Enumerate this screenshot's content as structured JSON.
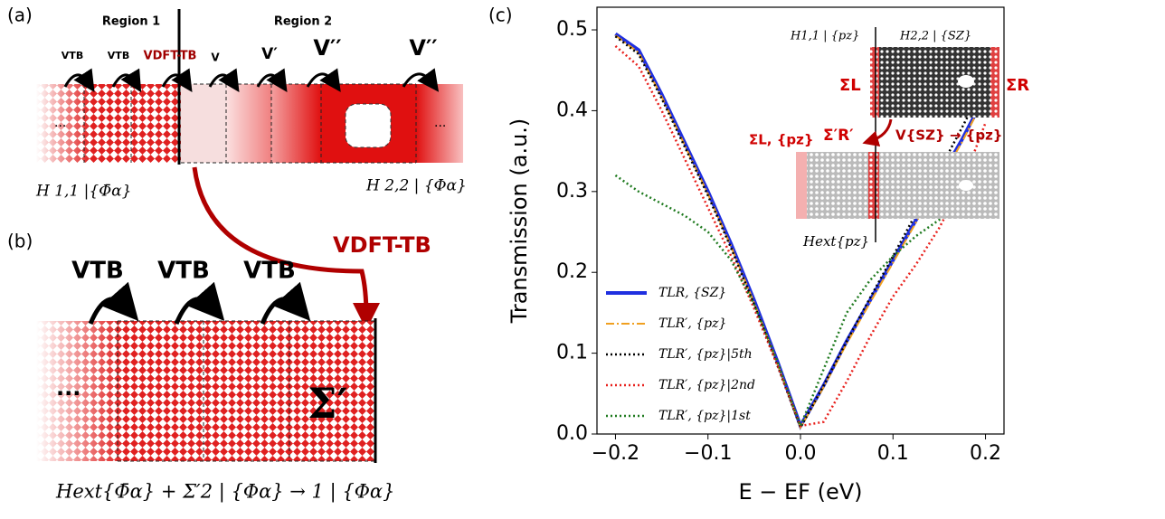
{
  "chart_data": {
    "type": "line",
    "panel_label": "(c)",
    "xlabel": "E − EF (eV)",
    "ylabel": "Transmission (a.u.)",
    "x": [
      -0.2,
      -0.175,
      -0.15,
      -0.125,
      -0.1,
      -0.075,
      -0.05,
      -0.025,
      0,
      0.025,
      0.05,
      0.075,
      0.1,
      0.125,
      0.15,
      0.175,
      0.2
    ],
    "xlim": [
      -0.22,
      0.22
    ],
    "ylim": [
      0,
      0.528
    ],
    "xticks": [
      {
        "value": -0.2,
        "label": "−0.2"
      },
      {
        "value": -0.1,
        "label": "−0.1"
      },
      {
        "value": 0,
        "label": "0.0"
      },
      0.1,
      0.2
    ],
    "yticks": [
      {
        "value": 0,
        "label": "0.0"
      },
      0.1,
      0.2,
      0.3,
      0.4,
      0.5
    ],
    "legend": "lower left",
    "series": [
      {
        "name": "TLR, {SZ}",
        "color": "#1f2fe0",
        "style": "solid",
        "values": [
          0.495,
          0.475,
          0.42,
          0.36,
          0.3,
          0.235,
          0.165,
          0.09,
          0.01,
          0.06,
          0.115,
          0.165,
          0.215,
          0.265,
          0.315,
          0.365,
          0.42
        ]
      },
      {
        "name": "TLR′, {pz}",
        "color": "#f0a020",
        "style": "dashdot",
        "values": [
          0.493,
          0.472,
          0.417,
          0.357,
          0.297,
          0.232,
          0.162,
          0.087,
          0.008,
          0.058,
          0.112,
          0.162,
          0.212,
          0.262,
          0.312,
          0.362,
          0.418
        ]
      },
      {
        "name": "TLR′, {pz}|5th",
        "color": "#000000",
        "style": "dotted",
        "values": [
          0.492,
          0.47,
          0.415,
          0.355,
          0.295,
          0.23,
          0.16,
          0.085,
          0.008,
          0.06,
          0.115,
          0.168,
          0.22,
          0.273,
          0.326,
          0.38,
          0.435
        ]
      },
      {
        "name": "TLR′, {pz}|2nd",
        "color": "#e8201c",
        "style": "dotted",
        "values": [
          0.48,
          0.455,
          0.4,
          0.34,
          0.28,
          0.22,
          0.155,
          0.085,
          0.01,
          0.015,
          0.065,
          0.12,
          0.17,
          0.21,
          0.255,
          0.31,
          0.385
        ]
      },
      {
        "name": "TLR′, {pz}|1st",
        "color": "#1f7a1f",
        "style": "dotted",
        "values": [
          0.32,
          0.3,
          0.285,
          0.27,
          0.25,
          0.215,
          0.16,
          0.09,
          0.01,
          0.08,
          0.15,
          0.19,
          0.22,
          0.245,
          0.265,
          0.29,
          0.315
        ]
      }
    ],
    "inset": {
      "h11": "H1,1 | {pz}",
      "h22": "H2,2 | {SZ}",
      "sigma_l": "ΣL",
      "sigma_r": "ΣR",
      "sigma_rp": "Σ′R′",
      "coupling": "V{SZ} → {pz}",
      "sigma_lpz": "ΣL, {pz}",
      "hext": "Hext{pz}"
    }
  },
  "panel_a": {
    "label": "(a)",
    "region1": "Region 1",
    "region2": "Region 2",
    "couplings": [
      "VTB",
      "VTB",
      "VDFT-TB",
      "V",
      "V′",
      "V′′",
      "V′′"
    ],
    "dots_left": "...",
    "dots_right": "...",
    "h11": "H 1,1 |{Φ̄α}",
    "h22": "H 2,2 | {Φα}"
  },
  "panel_b": {
    "label": "(b)",
    "coupling_long": "VDFT-TB",
    "couplings": [
      "VTB",
      "VTB",
      "VTB"
    ],
    "dots": "...",
    "sigma": "Σ′",
    "formula": "Hext{Φ̄α} + Σ′2 | {Φα} → 1 | {Φα}"
  }
}
